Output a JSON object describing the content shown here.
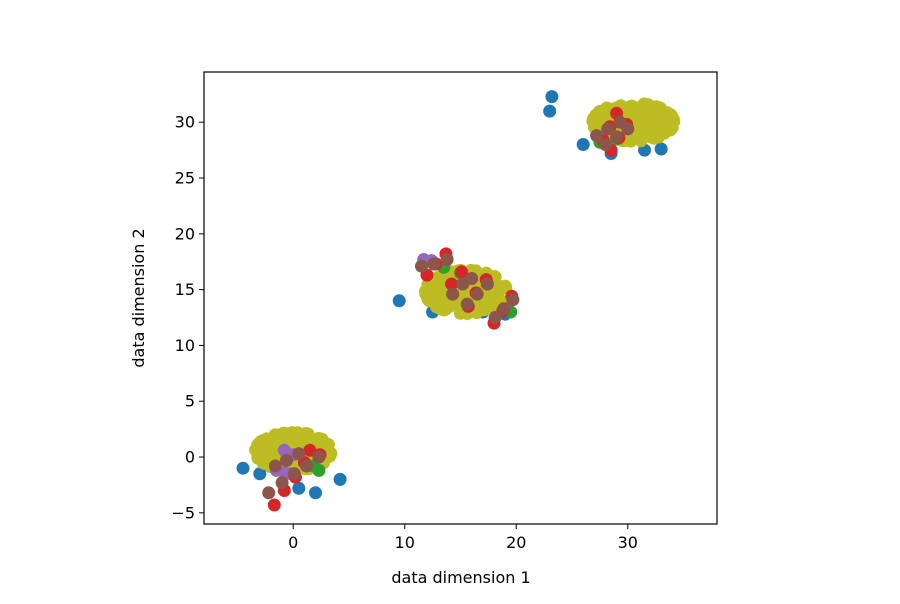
{
  "chart_data": {
    "type": "scatter",
    "title": "",
    "xlabel": "data dimension 1",
    "ylabel": "data dimension 2",
    "xlim": [
      -8,
      38
    ],
    "ylim": [
      -6,
      34.5
    ],
    "xticks": [
      0,
      10,
      20,
      30
    ],
    "yticks": [
      -5,
      0,
      5,
      10,
      15,
      20,
      25,
      30
    ],
    "grid": false,
    "legend": "none",
    "background_clusters": [
      {
        "cx": 0,
        "cy": 0.5,
        "sx": 2.8,
        "sy": 1.4,
        "n": 320
      },
      {
        "cx": 15.5,
        "cy": 14.8,
        "sx": 3.0,
        "sy": 1.6,
        "n": 320
      },
      {
        "cx": 30.5,
        "cy": 30.0,
        "sx": 3.0,
        "sy": 1.4,
        "n": 320
      }
    ],
    "series": [
      {
        "color": "#1f77b4",
        "points": [
          [
            23.2,
            32.3
          ],
          [
            23.0,
            31.0
          ],
          [
            -4.5,
            -1.0
          ],
          [
            -3.0,
            -1.5
          ],
          [
            2.0,
            -3.2
          ],
          [
            0.5,
            -2.8
          ],
          [
            4.2,
            -2.0
          ],
          [
            9.5,
            14.0
          ],
          [
            12.5,
            13.0
          ],
          [
            17.0,
            13.0
          ],
          [
            19.0,
            12.8
          ],
          [
            33.0,
            27.6
          ],
          [
            31.5,
            27.5
          ],
          [
            28.5,
            27.2
          ],
          [
            26.0,
            28.0
          ]
        ]
      },
      {
        "color": "#2ca02c",
        "points": [
          [
            2.3,
            -1.2
          ],
          [
            1.8,
            -0.8
          ],
          [
            13.5,
            17.0
          ],
          [
            15.0,
            16.5
          ],
          [
            19.5,
            13.0
          ],
          [
            29.0,
            28.5
          ],
          [
            27.5,
            28.2
          ]
        ]
      },
      {
        "color": "#9467bd",
        "points": [
          [
            -1.5,
            -1.2
          ],
          [
            -0.8,
            -1.4
          ],
          [
            -0.2,
            -1.5
          ],
          [
            -0.8,
            0.6
          ],
          [
            0.0,
            0.2
          ],
          [
            11.7,
            17.7
          ],
          [
            12.4,
            17.6
          ]
        ]
      },
      {
        "color": "#d62728",
        "points": [
          [
            -1.7,
            -4.3
          ],
          [
            -0.8,
            -3.0
          ],
          [
            0.2,
            -1.8
          ],
          [
            1.0,
            -0.5
          ],
          [
            1.5,
            0.6
          ],
          [
            2.4,
            0.2
          ],
          [
            12.0,
            16.3
          ],
          [
            12.8,
            17.3
          ],
          [
            13.7,
            18.2
          ],
          [
            14.2,
            15.5
          ],
          [
            15.1,
            16.6
          ],
          [
            15.7,
            13.5
          ],
          [
            16.4,
            14.7
          ],
          [
            17.3,
            15.9
          ],
          [
            18.0,
            12.0
          ],
          [
            18.8,
            13.1
          ],
          [
            19.6,
            14.4
          ],
          [
            27.8,
            28.4
          ],
          [
            28.4,
            29.6
          ],
          [
            29.0,
            30.8
          ],
          [
            28.5,
            27.5
          ],
          [
            29.2,
            28.6
          ],
          [
            29.9,
            29.8
          ]
        ]
      },
      {
        "color": "#8c564b",
        "points": [
          [
            -2.2,
            -3.2
          ],
          [
            -1.0,
            -2.3
          ],
          [
            0.1,
            -1.5
          ],
          [
            1.2,
            -0.8
          ],
          [
            2.3,
            0.0
          ],
          [
            -1.6,
            -0.8
          ],
          [
            -0.6,
            -0.3
          ],
          [
            0.5,
            0.3
          ],
          [
            11.5,
            17.1
          ],
          [
            12.6,
            17.3
          ],
          [
            13.8,
            17.7
          ],
          [
            14.3,
            14.6
          ],
          [
            15.2,
            15.5
          ],
          [
            16.0,
            16.0
          ],
          [
            15.6,
            13.7
          ],
          [
            16.5,
            14.6
          ],
          [
            17.4,
            15.5
          ],
          [
            18.1,
            12.5
          ],
          [
            18.9,
            13.3
          ],
          [
            19.7,
            14.1
          ],
          [
            27.2,
            28.8
          ],
          [
            28.2,
            29.4
          ],
          [
            29.3,
            30.0
          ],
          [
            28.0,
            28.0
          ],
          [
            29.0,
            28.7
          ],
          [
            30.0,
            29.4
          ]
        ]
      }
    ],
    "background_color": "#bcbd22"
  }
}
